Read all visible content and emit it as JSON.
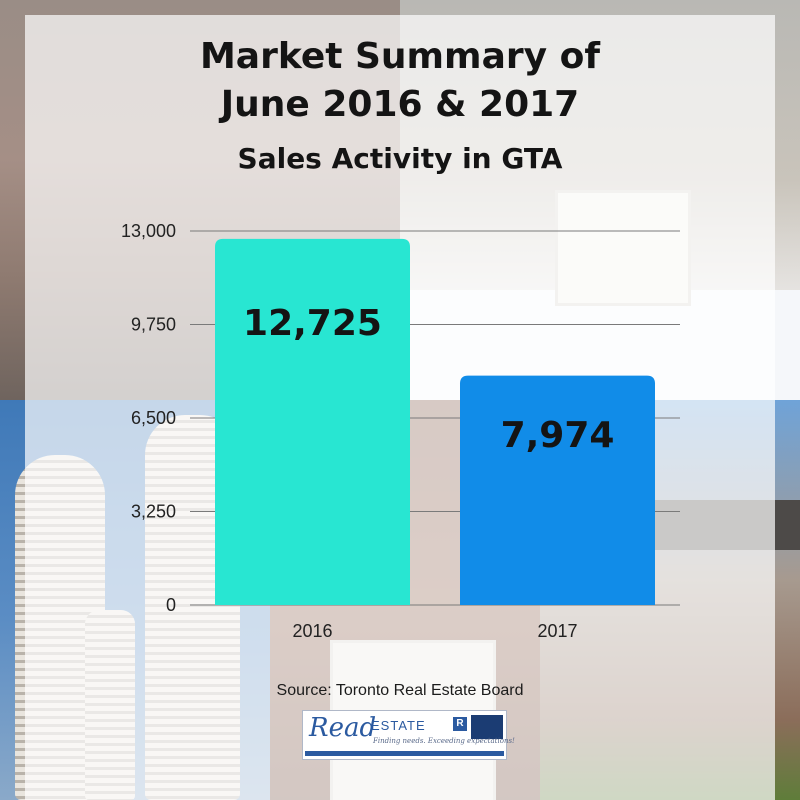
{
  "heading": {
    "line1": "Market Summary of",
    "line2": "June 2016 & 2017",
    "line3": "Sales Activity in GTA"
  },
  "source": "Source: Toronto Real Estate Board",
  "logo": {
    "primary": "Read",
    "secondary": "ESTATE",
    "tagline": "Finding needs. Exceeding expectations!"
  },
  "colors": {
    "bar_2016": "#28e6d2",
    "bar_2017": "#118ce8"
  },
  "chart_data": {
    "type": "bar",
    "categories": [
      "2016",
      "2017"
    ],
    "values": [
      12725,
      7974
    ],
    "value_labels": [
      "12,725",
      "7,974"
    ],
    "title": "Sales Activity in GTA",
    "xlabel": "",
    "ylabel": "",
    "ylim": [
      0,
      13000
    ],
    "yticks": [
      0,
      3250,
      6500,
      9750,
      13000
    ],
    "ytick_labels": [
      "0",
      "3,250",
      "6,500",
      "9,750",
      "13,000"
    ],
    "grid": true,
    "legend": "none"
  }
}
